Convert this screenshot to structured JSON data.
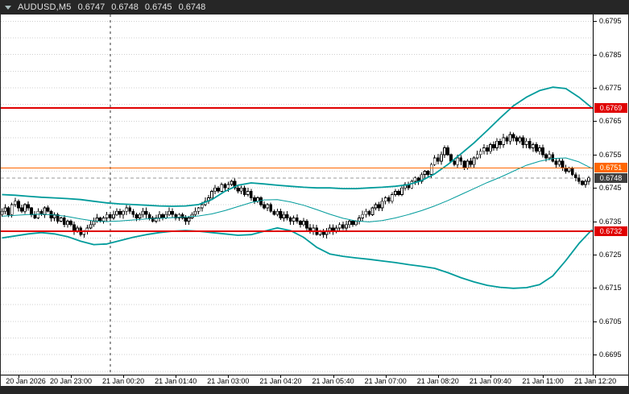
{
  "window": {
    "title_symbol": "AUDUSD,M5",
    "ohlc": {
      "open": "0.6747",
      "high": "0.6748",
      "low": "0.6745",
      "close": "0.6748"
    }
  },
  "colors": {
    "frame": "#262626",
    "plot_bg": "#ffffff",
    "grid": "#cfcfcf",
    "candle": "#000000",
    "bull_fill": "#ffffff",
    "bear_fill": "#000000",
    "band": "#009b9b",
    "red_line": "#e00000",
    "orange_line": "#ff6600",
    "current_badge": "#3f3f3f",
    "current_line": "#9a9a9a",
    "separator": "#333333",
    "title_text": "#e2e2e2"
  },
  "chart_data": {
    "type": "candlestick",
    "symbol": "AUDUSD",
    "timeframe": "M5",
    "indicator": "Bollinger Bands (teal upper/middle/lower envelope)",
    "grid": "horizontal dotted every 0.0005",
    "price_axis": {
      "min": 0.6689,
      "max": 0.6797,
      "grid_step": 0.0005,
      "label_step": 0.001,
      "labels": [
        "0.6795",
        "0.6785",
        "0.6775",
        "0.6765",
        "0.6755",
        "0.6745",
        "0.6735",
        "0.6725",
        "0.6715",
        "0.6705",
        "0.6695"
      ]
    },
    "x_axis": {
      "day_separator_bar": 33,
      "labels": [
        {
          "text": "20 Jan 2026",
          "bar": 5
        },
        {
          "text": "20 Jan 23:00",
          "bar": 21
        },
        {
          "text": "21 Jan 00:20",
          "bar": 37
        },
        {
          "text": "21 Jan 01:40",
          "bar": 53
        },
        {
          "text": "21 Jan 03:00",
          "bar": 69
        },
        {
          "text": "21 Jan 04:20",
          "bar": 85
        },
        {
          "text": "21 Jan 05:40",
          "bar": 101
        },
        {
          "text": "21 Jan 07:00",
          "bar": 117
        },
        {
          "text": "21 Jan 08:20",
          "bar": 133
        },
        {
          "text": "21 Jan 09:40",
          "bar": 149
        },
        {
          "text": "21 Jan 11:00",
          "bar": 165
        },
        {
          "text": "21 Jan 12:20",
          "bar": 181
        }
      ]
    },
    "hlines": [
      {
        "price": 0.6769,
        "label": "0.6769",
        "color": "#e00000",
        "width": 2
      },
      {
        "price": 0.6751,
        "label": "0.6751",
        "color": "#ff6600",
        "width": 1
      },
      {
        "price": 0.6732,
        "label": "0.6732",
        "color": "#e00000",
        "width": 2
      }
    ],
    "current_price": {
      "value": 0.6748,
      "label": "0.6748"
    },
    "candles": {
      "count": 180,
      "first_open": 0.6737,
      "closes": [
        0.6738,
        0.6739,
        0.6737,
        0.674,
        0.6741,
        0.6739,
        0.6738,
        0.674,
        0.6739,
        0.6737,
        0.6736,
        0.6738,
        0.6737,
        0.6739,
        0.6738,
        0.6736,
        0.6737,
        0.6735,
        0.6736,
        0.6734,
        0.6735,
        0.6734,
        0.6732,
        0.6733,
        0.6731,
        0.6732,
        0.6733,
        0.6734,
        0.6735,
        0.6736,
        0.6735,
        0.6736,
        0.6737,
        0.6736,
        0.6737,
        0.6738,
        0.6737,
        0.6738,
        0.6739,
        0.6738,
        0.6737,
        0.6736,
        0.6737,
        0.6738,
        0.6737,
        0.6736,
        0.6735,
        0.6736,
        0.6737,
        0.6736,
        0.6737,
        0.6738,
        0.6737,
        0.6736,
        0.6737,
        0.6736,
        0.6735,
        0.6736,
        0.6737,
        0.6738,
        0.6739,
        0.674,
        0.6741,
        0.6742,
        0.6744,
        0.6745,
        0.6744,
        0.6746,
        0.6745,
        0.6746,
        0.6747,
        0.6745,
        0.6744,
        0.6745,
        0.6743,
        0.6744,
        0.6742,
        0.6741,
        0.6742,
        0.674,
        0.6739,
        0.674,
        0.6738,
        0.6737,
        0.6738,
        0.6736,
        0.6737,
        0.6736,
        0.6735,
        0.6736,
        0.6735,
        0.6734,
        0.6735,
        0.6733,
        0.6732,
        0.6733,
        0.6731,
        0.6732,
        0.6731,
        0.6732,
        0.6733,
        0.6732,
        0.6733,
        0.6734,
        0.6733,
        0.6734,
        0.6735,
        0.6734,
        0.6735,
        0.6736,
        0.6737,
        0.6738,
        0.6737,
        0.6739,
        0.674,
        0.6739,
        0.6741,
        0.6742,
        0.6741,
        0.6743,
        0.6744,
        0.6743,
        0.6745,
        0.6746,
        0.6745,
        0.6747,
        0.6748,
        0.6747,
        0.6749,
        0.675,
        0.6749,
        0.6752,
        0.6754,
        0.6753,
        0.6755,
        0.6757,
        0.6755,
        0.6753,
        0.6752,
        0.6754,
        0.6753,
        0.6751,
        0.6753,
        0.6752,
        0.6754,
        0.6755,
        0.6756,
        0.6757,
        0.6756,
        0.6758,
        0.6757,
        0.6759,
        0.6758,
        0.676,
        0.6759,
        0.6761,
        0.676,
        0.6759,
        0.676,
        0.6758,
        0.6759,
        0.6757,
        0.6758,
        0.6756,
        0.6757,
        0.6755,
        0.6754,
        0.6755,
        0.6753,
        0.6752,
        0.6753,
        0.6751,
        0.675,
        0.6751,
        0.6749,
        0.6748,
        0.6747,
        0.6746,
        0.6747,
        0.6748
      ]
    },
    "bands": {
      "sample_step": 4,
      "upper": [
        0.6743,
        0.67428,
        0.67425,
        0.67422,
        0.6742,
        0.67418,
        0.67415,
        0.6741,
        0.67405,
        0.67402,
        0.674,
        0.67398,
        0.67396,
        0.67395,
        0.67396,
        0.674,
        0.67415,
        0.6744,
        0.67458,
        0.67465,
        0.67462,
        0.67458,
        0.67455,
        0.67452,
        0.6745,
        0.6745,
        0.67448,
        0.67448,
        0.6745,
        0.67452,
        0.67455,
        0.6746,
        0.67472,
        0.67492,
        0.6752,
        0.67552,
        0.67585,
        0.67622,
        0.6766,
        0.67696,
        0.67722,
        0.67742,
        0.67752,
        0.67748,
        0.67722,
        0.6769
      ],
      "middle": [
        0.67365,
        0.67368,
        0.6737,
        0.67371,
        0.67369,
        0.67364,
        0.67357,
        0.67351,
        0.67349,
        0.67351,
        0.67354,
        0.67357,
        0.67359,
        0.67361,
        0.67363,
        0.67366,
        0.67372,
        0.67382,
        0.67394,
        0.67406,
        0.67414,
        0.67415,
        0.67408,
        0.67398,
        0.67385,
        0.67371,
        0.67359,
        0.67351,
        0.67348,
        0.67352,
        0.6736,
        0.6737,
        0.67382,
        0.67396,
        0.67412,
        0.6743,
        0.67448,
        0.67466,
        0.67482,
        0.675,
        0.67518,
        0.6753,
        0.67538,
        0.6754,
        0.67528,
        0.67508
      ],
      "lower": [
        0.673,
        0.67306,
        0.67312,
        0.67316,
        0.67312,
        0.67304,
        0.6729,
        0.6728,
        0.67282,
        0.67292,
        0.67302,
        0.6731,
        0.67316,
        0.6732,
        0.67322,
        0.6732,
        0.67316,
        0.67312,
        0.67308,
        0.6731,
        0.6732,
        0.6733,
        0.67322,
        0.67302,
        0.67272,
        0.67252,
        0.67245,
        0.6724,
        0.67236,
        0.67231,
        0.67226,
        0.6722,
        0.67215,
        0.67209,
        0.67196,
        0.67181,
        0.67168,
        0.67158,
        0.67152,
        0.67149,
        0.67151,
        0.6716,
        0.67186,
        0.67232,
        0.67283,
        0.67325
      ]
    }
  }
}
